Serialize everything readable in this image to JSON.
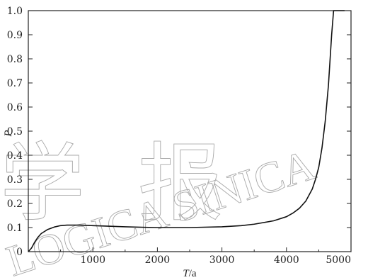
{
  "chart_data": {
    "type": "line",
    "title": "",
    "xlabel_italic": "T",
    "xlabel_unit": "/a",
    "ylabel": "P",
    "xlim": [
      0,
      5000
    ],
    "ylim": [
      0,
      1.0
    ],
    "x_ticks": [
      {
        "value": 0,
        "label": "0"
      },
      {
        "value": 1000,
        "label": "1000"
      },
      {
        "value": 2000,
        "label": "2000"
      },
      {
        "value": 3000,
        "label": "3000"
      },
      {
        "value": 4000,
        "label": "4000"
      },
      {
        "value": 5000,
        "label": "5000"
      }
    ],
    "y_ticks": [
      {
        "value": 0.1,
        "label": "0.1"
      },
      {
        "value": 0.2,
        "label": "0.2"
      },
      {
        "value": 0.3,
        "label": "0.3"
      },
      {
        "value": 0.4,
        "label": "0.4"
      },
      {
        "value": 0.5,
        "label": "0.5"
      },
      {
        "value": 0.6,
        "label": "0.6"
      },
      {
        "value": 0.7,
        "label": "0.7"
      },
      {
        "value": 0.8,
        "label": "0.8"
      },
      {
        "value": 0.9,
        "label": "0.9"
      },
      {
        "value": 1.0,
        "label": "1.0"
      }
    ],
    "grid": false,
    "legend": "none",
    "line_color": "#111111",
    "series": [
      {
        "x": [
          0,
          50,
          100,
          150,
          200,
          300,
          400,
          500,
          600,
          700,
          800,
          1000,
          1200,
          1500,
          1800,
          2000,
          2500,
          3000,
          3300,
          3500,
          3800,
          4000,
          4100,
          4200,
          4300,
          4400,
          4450,
          4500,
          4550,
          4600,
          4650,
          4700,
          4730,
          4800,
          4900
        ],
        "y": [
          0.0,
          0.015,
          0.04,
          0.06,
          0.075,
          0.092,
          0.102,
          0.108,
          0.11,
          0.11,
          0.11,
          0.108,
          0.106,
          0.103,
          0.101,
          0.1,
          0.1,
          0.103,
          0.108,
          0.114,
          0.128,
          0.145,
          0.16,
          0.18,
          0.21,
          0.26,
          0.3,
          0.35,
          0.43,
          0.54,
          0.69,
          0.9,
          1.0,
          1.0,
          1.0
        ]
      }
    ]
  },
  "watermark": {
    "chars": "学报",
    "text": "LOGICA SINICA"
  }
}
